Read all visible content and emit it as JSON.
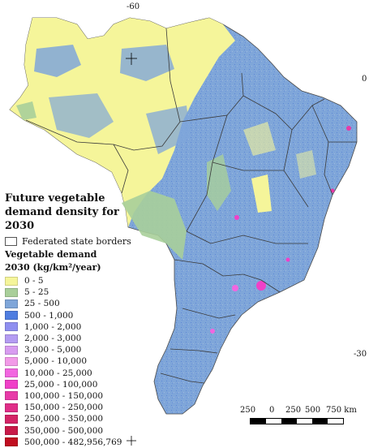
{
  "map": {
    "land_color_low": "#f5f59a",
    "land_color_mid": "#a9cf9a",
    "land_color_blue": "#7fa6d9",
    "border_color": "#3a3a3a"
  },
  "coords": {
    "top_lon": "-60",
    "right_lat_upper": "0",
    "right_lat_lower": "-30"
  },
  "legend": {
    "title_line1": "Future vegetable",
    "title_line2": "demand density for 2030",
    "border_label": "Federated state borders",
    "subtitle_line1": "Vegetable demand",
    "subtitle_line2": "2030 (kg/km²/year)",
    "classes": [
      {
        "label": "0 - 5",
        "color": "#f5f59a"
      },
      {
        "label": "5 - 25",
        "color": "#a9cf9a"
      },
      {
        "label": "25 - 500",
        "color": "#7fa6d9"
      },
      {
        "label": "500 - 1,000",
        "color": "#4f7de0"
      },
      {
        "label": "1,000 - 2,000",
        "color": "#8f8ff0"
      },
      {
        "label": "2,000 - 3,000",
        "color": "#b49cf2"
      },
      {
        "label": "3,000 - 5,000",
        "color": "#d89cf0"
      },
      {
        "label": "5,000 - 10,000",
        "color": "#f29ae8"
      },
      {
        "label": "10,000 - 25,000",
        "color": "#f266e0"
      },
      {
        "label": "25,000 - 100,000",
        "color": "#f040c8"
      },
      {
        "label": "100,000 - 150,000",
        "color": "#e83aa8"
      },
      {
        "label": "150,000 - 250,000",
        "color": "#e02e88"
      },
      {
        "label": "250,000 - 350,000",
        "color": "#d42466"
      },
      {
        "label": "350,000 - 500,000",
        "color": "#c81a48"
      },
      {
        "label": "500,000 - 482,956,769",
        "color": "#c00e20"
      }
    ]
  },
  "scalebar": {
    "labels": [
      "250",
      "0",
      "250",
      "500",
      "750 km"
    ]
  }
}
